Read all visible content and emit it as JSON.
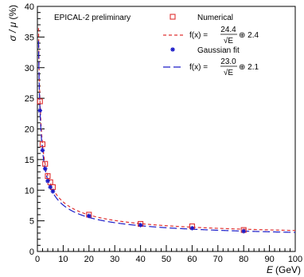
{
  "chart_data": {
    "type": "scatter",
    "annotation": "EPICAL-2 preliminary",
    "xlabel": {
      "symbol": "E",
      "unit": "(GeV)"
    },
    "ylabel": {
      "symbol": "σ / μ",
      "unit": "(%)"
    },
    "xlim": [
      0,
      100
    ],
    "ylim": [
      0,
      40
    ],
    "xticks": [
      0,
      10,
      20,
      30,
      40,
      50,
      60,
      70,
      80,
      90,
      100
    ],
    "yticks": [
      0,
      5,
      10,
      15,
      20,
      25,
      30,
      35,
      40
    ],
    "grid": false,
    "legend_position": "top-right",
    "colors": {
      "red": "#e03030",
      "blue": "#1c1cc8",
      "axis": "#000000"
    },
    "series": [
      {
        "name": "Numerical",
        "marker": "open-square",
        "color": "#e03030",
        "x": [
          1,
          2,
          3,
          4,
          5,
          6,
          20,
          40,
          60,
          80
        ],
        "y": [
          24.5,
          17.5,
          14.3,
          12.3,
          11.3,
          10.5,
          6.0,
          4.5,
          4.1,
          3.5
        ]
      },
      {
        "name": "Gaussian fit",
        "marker": "star",
        "color": "#1c1cc8",
        "x": [
          1,
          2,
          3,
          4,
          5,
          6,
          20,
          40,
          60,
          80
        ],
        "y": [
          23.0,
          16.5,
          13.5,
          11.5,
          10.5,
          9.8,
          5.8,
          4.3,
          3.8,
          3.3
        ]
      }
    ],
    "fits": [
      {
        "legend": {
          "prefix": "f(x) = ",
          "numerator": "24.4",
          "denominator": "√E",
          "suffix": " ⊕ 2.4"
        },
        "a": 24.4,
        "b": 2.4,
        "color": "#e03030",
        "dash": "short"
      },
      {
        "legend": {
          "prefix": "f(x) = ",
          "numerator": "23.0",
          "denominator": "√E",
          "suffix": " ⊕ 2.1"
        },
        "a": 23.0,
        "b": 2.1,
        "color": "#1c1cc8",
        "dash": "long"
      }
    ]
  }
}
